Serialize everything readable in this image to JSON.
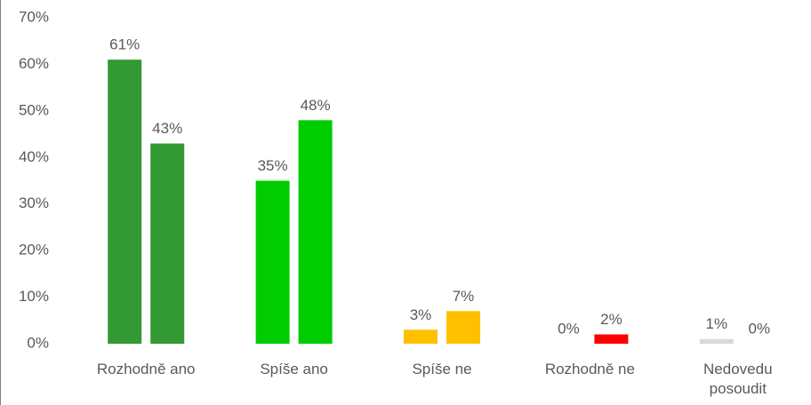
{
  "chart_data": {
    "type": "bar",
    "categories": [
      "Rozhodně ano",
      "Spíše ano",
      "Spíše ne",
      "Rozhodně ne",
      "Nedovedu posoudit"
    ],
    "category_colors": [
      "#339933",
      "#00cc00",
      "#ffc000",
      "#ff0000",
      "#d9d9d9"
    ],
    "series": [
      {
        "values": [
          61,
          35,
          3,
          0,
          1
        ],
        "value_labels": [
          "61%",
          "35%",
          "3%",
          "0%",
          "1%"
        ]
      },
      {
        "values": [
          43,
          48,
          7,
          2,
          0
        ],
        "value_labels": [
          "43%",
          "48%",
          "7%",
          "2%",
          "0%"
        ]
      }
    ],
    "ylim": [
      0,
      70
    ],
    "yticks": [
      {
        "value": 0,
        "label": "0%"
      },
      {
        "value": 10,
        "label": "10%"
      },
      {
        "value": 20,
        "label": "20%"
      },
      {
        "value": 30,
        "label": "30%"
      },
      {
        "value": 40,
        "label": "40%"
      },
      {
        "value": 50,
        "label": "50%"
      },
      {
        "value": 60,
        "label": "60%"
      },
      {
        "value": 70,
        "label": "70%"
      }
    ],
    "grid": false
  }
}
